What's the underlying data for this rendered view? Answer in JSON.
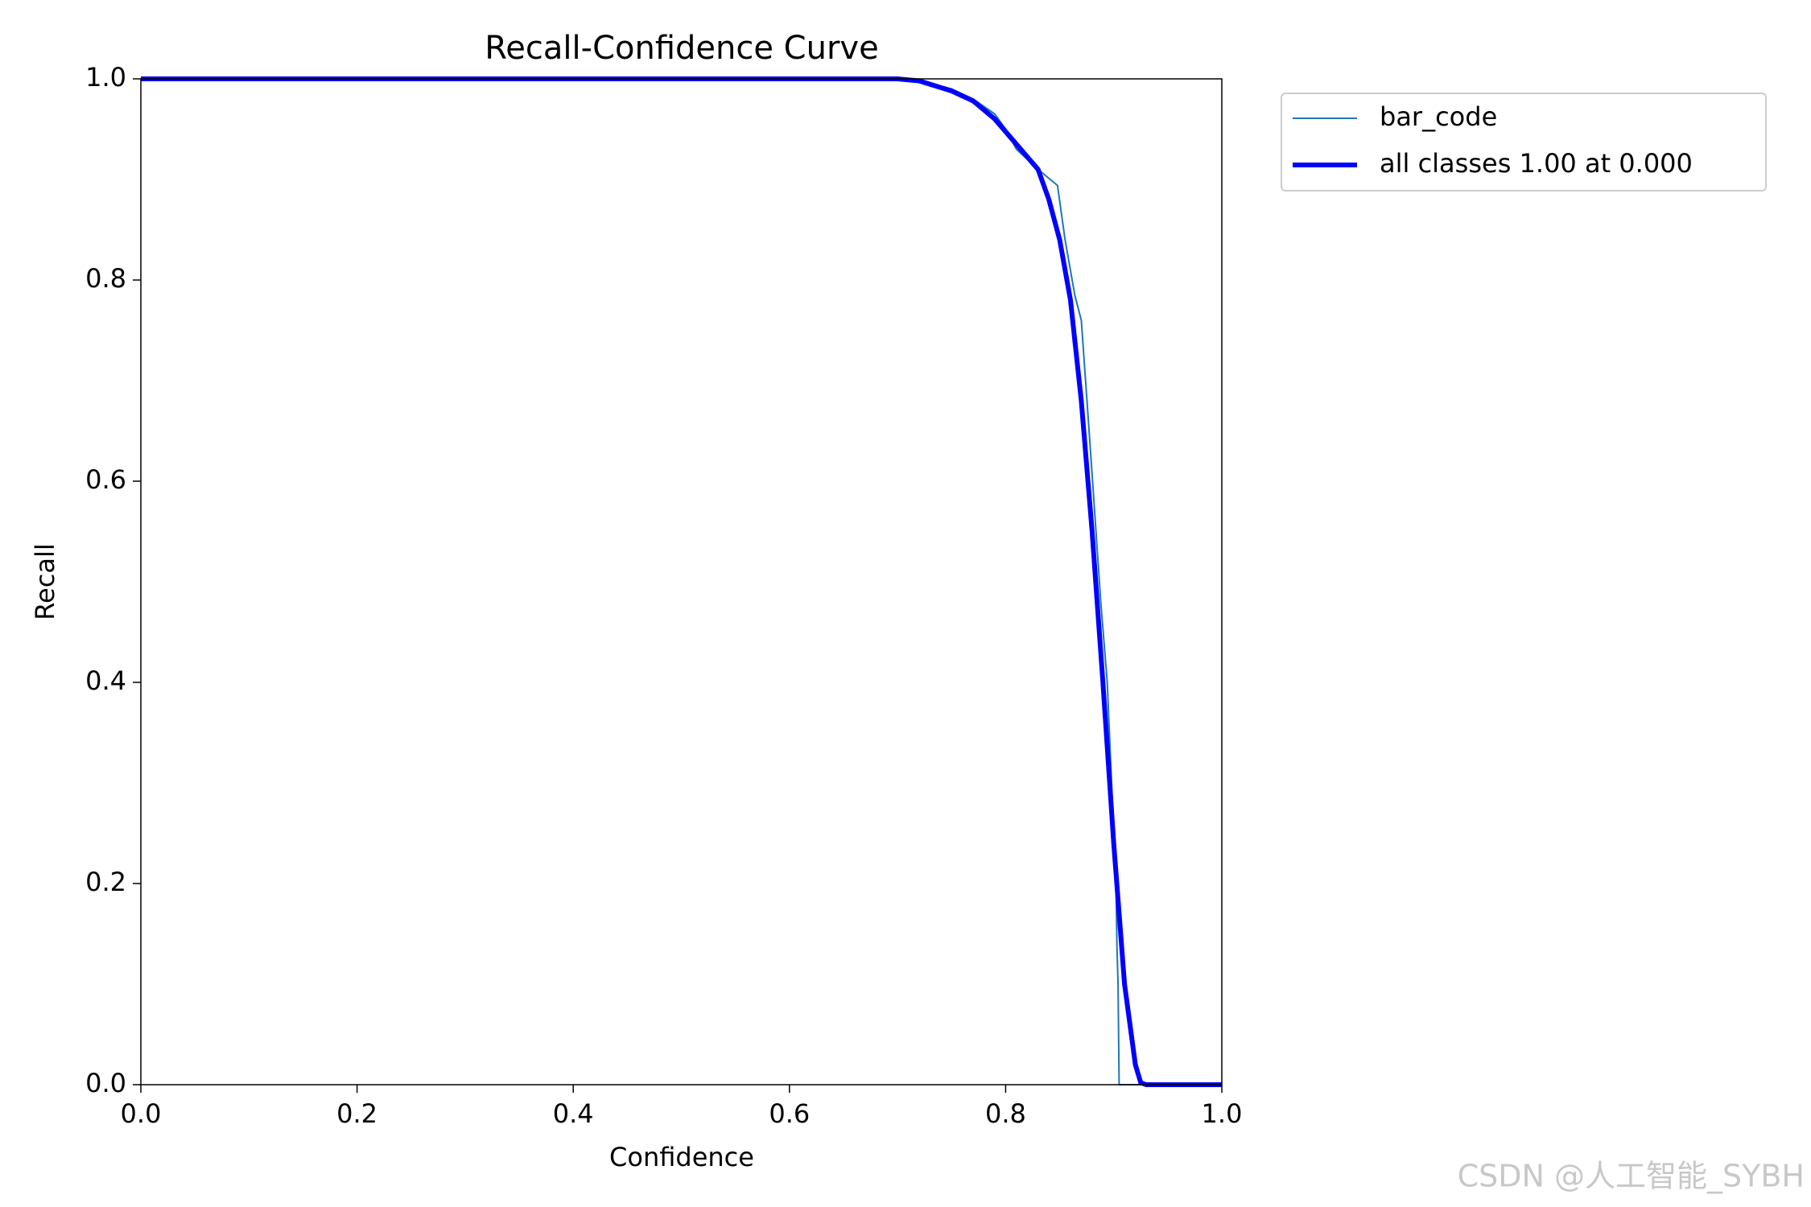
{
  "chart_data": {
    "type": "line",
    "title": "Recall-Confidence Curve",
    "x_label": "Confidence",
    "y_label": "Recall",
    "xlim": [
      0.0,
      1.0
    ],
    "ylim": [
      0.0,
      1.0
    ],
    "xticks": [
      {
        "value": 0,
        "label": "0.0"
      },
      0.2,
      0.4,
      0.6,
      0.8,
      {
        "value": 1,
        "label": "1.0"
      }
    ],
    "yticks": [
      {
        "value": 0,
        "label": "0.0"
      },
      0.2,
      0.4,
      0.6,
      0.8,
      {
        "value": 1,
        "label": "1.0"
      }
    ],
    "legend": "outside-upper-right",
    "series": [
      {
        "name": "bar_code",
        "color": "#1f77b4",
        "width": 2,
        "x": [
          0,
          0.7,
          0.72,
          0.75,
          0.77,
          0.79,
          0.8,
          0.81,
          0.82,
          0.83,
          0.848,
          0.855,
          0.864,
          0.87,
          0.875,
          0.88,
          0.888,
          0.894,
          0.9,
          0.902,
          0.903,
          0.904,
          0.905,
          1.0
        ],
        "values": [
          1.0,
          1.0,
          0.998,
          0.99,
          0.98,
          0.965,
          0.95,
          0.93,
          0.92,
          0.91,
          0.894,
          0.84,
          0.785,
          0.76,
          0.684,
          0.607,
          0.48,
          0.4,
          0.25,
          0.205,
          0.137,
          0.1,
          0.0,
          0.0
        ]
      },
      {
        "name": "all classes 1.00 at 0.000",
        "color": "#0000ff",
        "width": 6,
        "x": [
          0,
          0.7,
          0.72,
          0.75,
          0.77,
          0.79,
          0.81,
          0.83,
          0.84,
          0.85,
          0.86,
          0.87,
          0.88,
          0.89,
          0.9,
          0.91,
          0.92,
          0.925,
          0.93,
          1.0
        ],
        "values": [
          1.0,
          1.0,
          0.998,
          0.988,
          0.978,
          0.96,
          0.935,
          0.91,
          0.88,
          0.84,
          0.78,
          0.68,
          0.55,
          0.4,
          0.24,
          0.1,
          0.02,
          0.002,
          0.0,
          0.0
        ]
      }
    ],
    "watermark": "CSDN @人工智能_SYBH"
  }
}
